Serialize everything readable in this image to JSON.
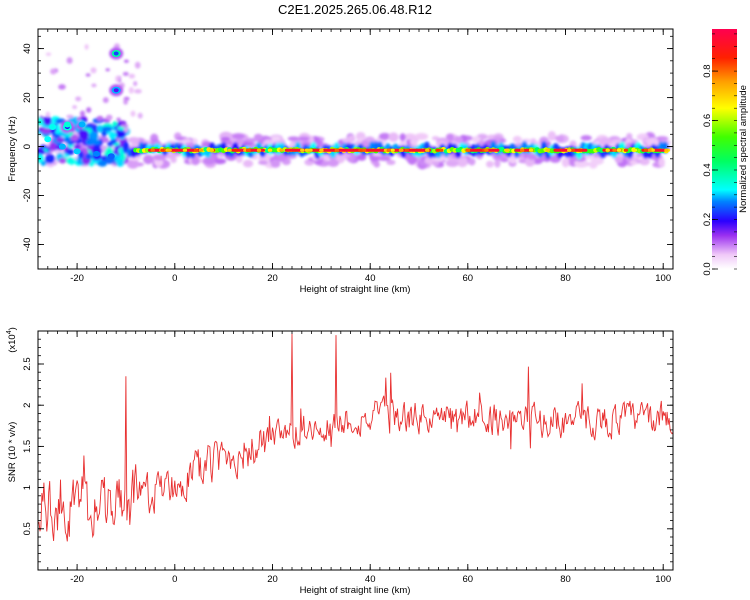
{
  "chart_data": [
    {
      "type": "heatmap",
      "title": "C2E1.2025.265.06.48.R12",
      "xlabel": "Height of straight line (km)",
      "ylabel": "Frequency (Hz)",
      "xlim": [
        -28,
        102
      ],
      "ylim": [
        -50,
        48
      ],
      "xticks": [
        -20,
        0,
        20,
        40,
        60,
        80,
        100
      ],
      "yticks": [
        -40,
        -20,
        0,
        20,
        40
      ],
      "colorbar": {
        "label": "Normalized spectral amplitude",
        "range": [
          0,
          0.97
        ],
        "ticks": [
          0.0,
          0.2,
          0.4,
          0.6,
          0.8
        ]
      },
      "features": [
        {
          "kind": "band",
          "x_range": [
            -10,
            101
          ],
          "freq": -1.5,
          "amplitude": 1.0,
          "note": "strong narrow echo band near 0 Hz"
        },
        {
          "kind": "cluster",
          "x_range": [
            -28,
            -10
          ],
          "freq_range": [
            -6,
            10
          ],
          "amplitude": 0.45
        },
        {
          "kind": "blob",
          "x": -12,
          "freq": 38,
          "amplitude": 0.4
        },
        {
          "kind": "blob",
          "x": -12,
          "freq": 23,
          "amplitude": 0.3
        },
        {
          "kind": "blob",
          "x": -22,
          "freq": 8,
          "amplitude": 0.35
        }
      ]
    },
    {
      "type": "line",
      "xlabel": "Height of straight line (km)",
      "ylabel": "SNR (10 * v/v)",
      "y_multiplier": "(x10",
      "y_multiplier_exp": "4",
      "y_multiplier_close": ")",
      "xlim": [
        -28,
        102
      ],
      "ylim": [
        0,
        2.9
      ],
      "xticks": [
        -20,
        0,
        20,
        40,
        60,
        80,
        100
      ],
      "yticks": [
        0.5,
        1.0,
        1.5,
        2.0,
        2.5
      ],
      "series": [
        {
          "name": "SNR",
          "color": "#e83030",
          "x_range": [
            -28,
            102
          ],
          "sample_step_km": 0.2,
          "trend": [
            [
              -28,
              0.75
            ],
            [
              -20,
              0.75
            ],
            [
              -10,
              0.8
            ],
            [
              0,
              1.05
            ],
            [
              10,
              1.35
            ],
            [
              20,
              1.55
            ],
            [
              30,
              1.75
            ],
            [
              40,
              1.85
            ],
            [
              60,
              1.85
            ],
            [
              80,
              1.8
            ],
            [
              102,
              1.85
            ]
          ],
          "peaks": [
            [
              24,
              2.87
            ],
            [
              33,
              2.85
            ],
            [
              -10,
              2.35
            ]
          ]
        }
      ]
    }
  ]
}
